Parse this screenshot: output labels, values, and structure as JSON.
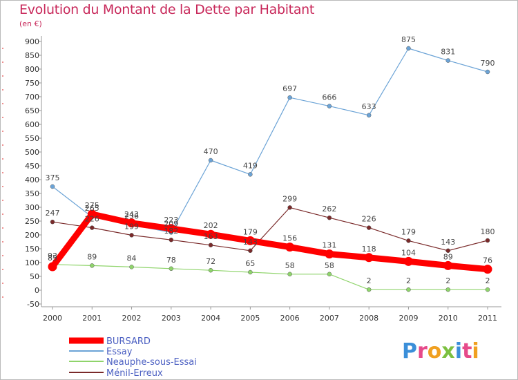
{
  "chart_data": {
    "type": "line",
    "title": "Evolution du Montant de la Dette par Habitant",
    "unit_label": "(en €)",
    "categories": [
      "2000",
      "2001",
      "2002",
      "2003",
      "2004",
      "2005",
      "2006",
      "2007",
      "2008",
      "2009",
      "2010",
      "2011"
    ],
    "ylim": [
      -50,
      900
    ],
    "yticks": [
      -50,
      0,
      50,
      100,
      150,
      200,
      250,
      300,
      350,
      400,
      450,
      500,
      550,
      600,
      650,
      700,
      750,
      800,
      850,
      900
    ],
    "grid": false,
    "legend_position": "bottom-left",
    "series": [
      {
        "name": "BURSARD",
        "color": "#ff0000",
        "values": [
          85,
          275,
          243,
          223,
          202,
          179,
          156,
          131,
          118,
          104,
          89,
          76
        ]
      },
      {
        "name": "Essay",
        "color": "#6ba3d6",
        "values": [
          375,
          265,
          236,
          209,
          470,
          419,
          697,
          666,
          633,
          875,
          831,
          790
        ]
      },
      {
        "name": "Neauphe-sous-Essai",
        "color": "#8fd46b",
        "values": [
          93,
          89,
          84,
          78,
          72,
          65,
          58,
          58,
          2,
          2,
          2,
          2
        ]
      },
      {
        "name": "Ménil-Erreux",
        "color": "#7a2a2a",
        "values": [
          247,
          226,
          199,
          182,
          163,
          143,
          299,
          262,
          226,
          179,
          143,
          180
        ]
      }
    ],
    "data_labels": [
      {
        "series": 0,
        "values": [
          "85",
          "275",
          "243",
          "223",
          "202",
          "179",
          "156",
          "131",
          "118",
          "104",
          "89",
          "76"
        ]
      },
      {
        "series": 1,
        "values": [
          "375",
          "265",
          "236",
          "209",
          "470",
          "419",
          "697",
          "666",
          "633",
          "875",
          "831",
          "790"
        ]
      },
      {
        "series": 2,
        "values": [
          "93",
          "89",
          "84",
          "78",
          "72",
          "65",
          "58",
          "58",
          "2",
          "2",
          "2",
          "2"
        ]
      },
      {
        "series": 3,
        "values": [
          "247",
          "226",
          "199",
          "182",
          "163",
          "143",
          "299",
          "262",
          "226",
          "179",
          "143",
          "180"
        ]
      }
    ]
  },
  "brand": {
    "letters": [
      {
        "ch": "P",
        "color": "#3b8fd9"
      },
      {
        "ch": "r",
        "color": "#e64a8a"
      },
      {
        "ch": "o",
        "color": "#f0a020"
      },
      {
        "ch": "x",
        "color": "#7cc040"
      },
      {
        "ch": "i",
        "color": "#3b8fd9"
      },
      {
        "ch": "t",
        "color": "#e64a8a"
      },
      {
        "ch": "i",
        "color": "#f0a020"
      }
    ]
  }
}
